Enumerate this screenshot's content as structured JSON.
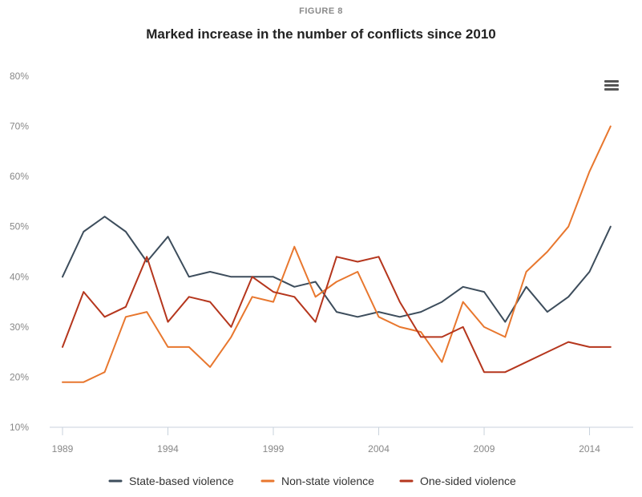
{
  "header": {
    "figure_label": "FIGURE 8",
    "title": "Marked increase in the number of conflicts since 2010"
  },
  "menu": {
    "icon": "hamburger-menu-icon"
  },
  "chart_data": {
    "type": "line",
    "title": "Marked increase in the number of conflicts since 2010",
    "xlabel": "",
    "ylabel": "",
    "x": [
      1989,
      1990,
      1991,
      1992,
      1993,
      1994,
      1995,
      1996,
      1997,
      1998,
      1999,
      2000,
      2001,
      2002,
      2003,
      2004,
      2005,
      2006,
      2007,
      2008,
      2009,
      2010,
      2011,
      2012,
      2013,
      2014,
      2015
    ],
    "x_ticks": [
      "1989",
      "1994",
      "1999",
      "2004",
      "2009",
      "2014"
    ],
    "x_tick_values": [
      1989,
      1994,
      1999,
      2004,
      2009,
      2014
    ],
    "xlim": [
      1989,
      2015.5
    ],
    "y_ticks": [
      "10%",
      "20%",
      "30%",
      "40%",
      "50%",
      "60%",
      "70%",
      "80%"
    ],
    "y_tick_values": [
      10,
      20,
      30,
      40,
      50,
      60,
      70,
      80
    ],
    "ylim": [
      10,
      80
    ],
    "grid": false,
    "legend_position": "bottom",
    "series": [
      {
        "name": "State-based violence",
        "color": "#3d4d5c",
        "values": [
          40,
          49,
          52,
          49,
          43,
          48,
          40,
          41,
          40,
          40,
          40,
          38,
          39,
          33,
          32,
          33,
          32,
          33,
          35,
          38,
          37,
          31,
          38,
          33,
          36,
          41,
          50
        ]
      },
      {
        "name": "Non-state violence",
        "color": "#e8772e",
        "values": [
          19,
          19,
          21,
          32,
          33,
          26,
          26,
          22,
          28,
          36,
          35,
          46,
          36,
          39,
          41,
          32,
          30,
          29,
          23,
          35,
          30,
          28,
          41,
          45,
          50,
          61,
          70
        ]
      },
      {
        "name": "One-sided violence",
        "color": "#b5361d",
        "values": [
          26,
          37,
          32,
          34,
          44,
          31,
          36,
          35,
          30,
          40,
          37,
          36,
          31,
          44,
          43,
          44,
          35,
          28,
          28,
          30,
          21,
          21,
          23,
          25,
          27,
          26,
          26
        ]
      }
    ]
  }
}
